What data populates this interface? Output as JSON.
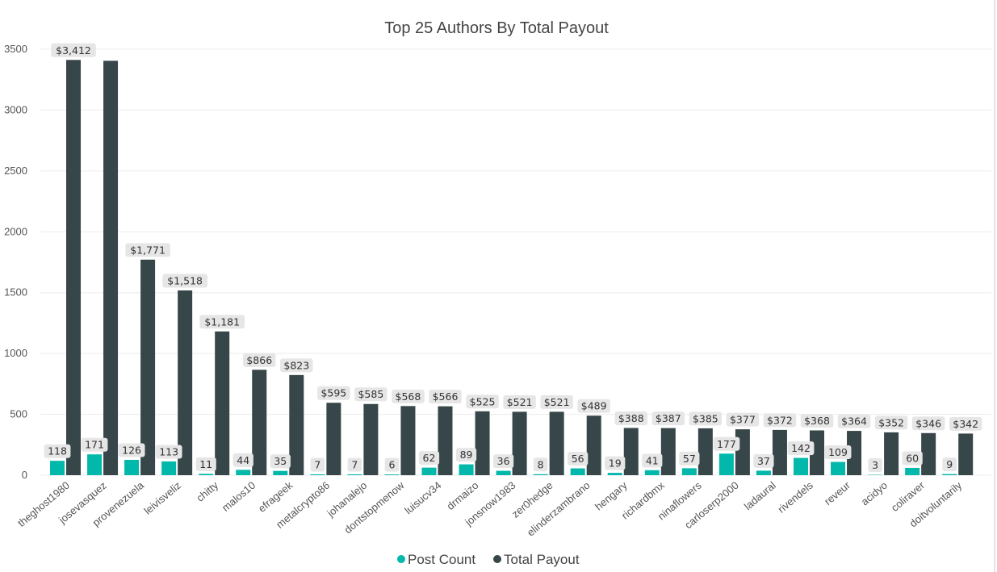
{
  "chart_data": {
    "type": "bar",
    "title": "Top 25 Authors By Total Payout",
    "xlabel": "",
    "ylabel": "",
    "ylim": [
      0,
      3500
    ],
    "yticks": [
      0,
      500,
      1000,
      1500,
      2000,
      2500,
      3000,
      3500
    ],
    "grid": true,
    "legend_position": "bottom-center",
    "categories": [
      "theghost1980",
      "josevasquez",
      "provenezuela",
      "leivisveliz",
      "chitty",
      "malos10",
      "efrageek",
      "metalcrypto86",
      "johanalejo",
      "dontstopmenow",
      "luisucv34",
      "drmaizo",
      "jonsnow1983",
      "zer0hedge",
      "elinderzambrano",
      "hengary",
      "richardbmx",
      "ninaflowers",
      "carloserp2000",
      "ladaural",
      "rivendels",
      "reveur",
      "acidyo",
      "coliraver",
      "doitvoluntarily"
    ],
    "series": [
      {
        "name": "Post Count",
        "color": "#01b8aa",
        "values": [
          118,
          171,
          126,
          113,
          11,
          44,
          35,
          7,
          7,
          6,
          62,
          89,
          36,
          8,
          56,
          19,
          41,
          57,
          177,
          37,
          142,
          109,
          3,
          60,
          9
        ],
        "labels": [
          "118",
          "171",
          "126",
          "113",
          "11",
          "44",
          "35",
          "7",
          "7",
          "6",
          "62",
          "89",
          "36",
          "8",
          "56",
          "19",
          "41",
          "57",
          "177",
          "37",
          "142",
          "109",
          "3",
          "60",
          "9"
        ]
      },
      {
        "name": "Total Payout",
        "color": "#374649",
        "values": [
          3412,
          3405,
          1771,
          1518,
          1181,
          866,
          823,
          595,
          585,
          568,
          566,
          525,
          521,
          521,
          489,
          388,
          387,
          385,
          377,
          372,
          368,
          364,
          352,
          346,
          342
        ],
        "labels": [
          "$3,412",
          "",
          "$1,771",
          "$1,518",
          "$1,181",
          "$866",
          "$823",
          "$595",
          "$585",
          "$568",
          "$566",
          "$525",
          "$521",
          "$521",
          "$489",
          "$388",
          "$387",
          "$385",
          "$377",
          "$372",
          "$368",
          "$364",
          "$352",
          "$346",
          "$342"
        ]
      }
    ]
  }
}
